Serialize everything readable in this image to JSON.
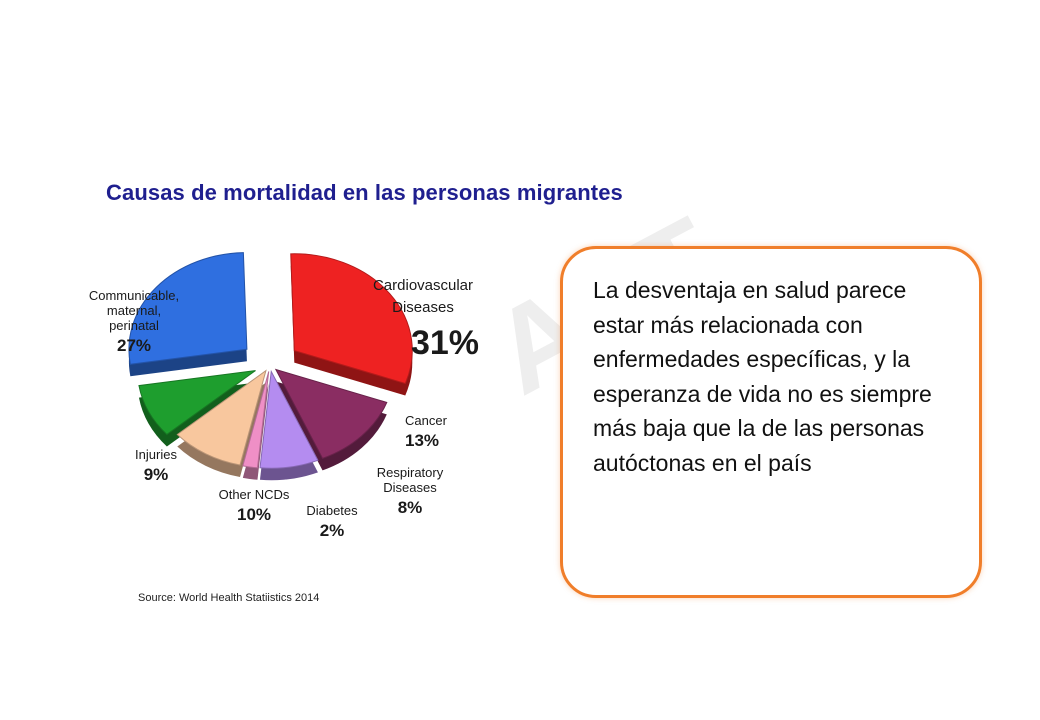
{
  "title": "Causas de mortalidad en las personas migrantes",
  "source": "Source: World Health Statiistics 2014",
  "callout_text": "La desventaja en salud parece estar más relacionada con enfermedades específicas, y la esperanza de vida no es siempre más baja que la de las personas autóctonas en el país",
  "watermark": "AFT",
  "chart_data": {
    "type": "pie",
    "unit": "%",
    "slices": [
      {
        "label": [
          "Cardiovascular",
          "Diseases"
        ],
        "value": 31,
        "value_label": "31%",
        "color": "#ee2222"
      },
      {
        "label": [
          "Cancer"
        ],
        "value": 13,
        "value_label": "13%",
        "color": "#8a2d62"
      },
      {
        "label": [
          "Respiratory",
          "Diseases"
        ],
        "value": 8,
        "value_label": "8%",
        "color": "#b48cf0"
      },
      {
        "label": [
          "Diabetes"
        ],
        "value": 2,
        "value_label": "2%",
        "color": "#ef8fc6"
      },
      {
        "label": [
          "Other NCDs"
        ],
        "value": 10,
        "value_label": "10%",
        "color": "#f8c79e"
      },
      {
        "label": [
          "Injuries"
        ],
        "value": 9,
        "value_label": "9%",
        "color": "#1e9e2e"
      },
      {
        "label": [
          "Communicable,",
          "maternal,",
          "perinatal"
        ],
        "value": 27,
        "value_label": "27%",
        "color": "#2f6fe0"
      }
    ]
  }
}
